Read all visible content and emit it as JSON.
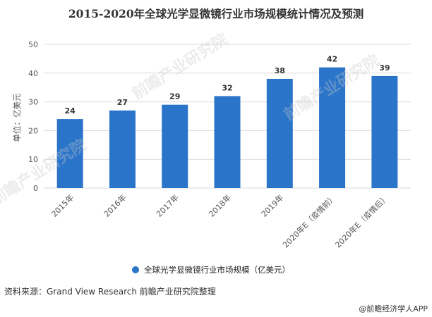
{
  "title": "2015-2020年全球光学显微镜行业市场规模统计情况及预测",
  "chart_data": {
    "type": "bar",
    "categories": [
      "2015年",
      "2016年",
      "2017年",
      "2018年",
      "2019年",
      "2020年E（疫情前）",
      "2020年E（疫情后）"
    ],
    "series": [
      {
        "name": "全球光学显微镜行业市场规模（亿美元）",
        "values": [
          24,
          27,
          29,
          32,
          38,
          42,
          39
        ],
        "color": "#2a74c9"
      }
    ],
    "ylabel": "单位：亿美元",
    "ylim": [
      0,
      50
    ],
    "yticks": [
      0,
      10,
      20,
      30,
      40,
      50
    ],
    "grid": true,
    "legend": "bottom"
  },
  "source": "资料来源：Grand View Research 前瞻产业研究院整理",
  "credit": "@前瞻经济学人APP",
  "watermark": "前瞻产业研究院"
}
